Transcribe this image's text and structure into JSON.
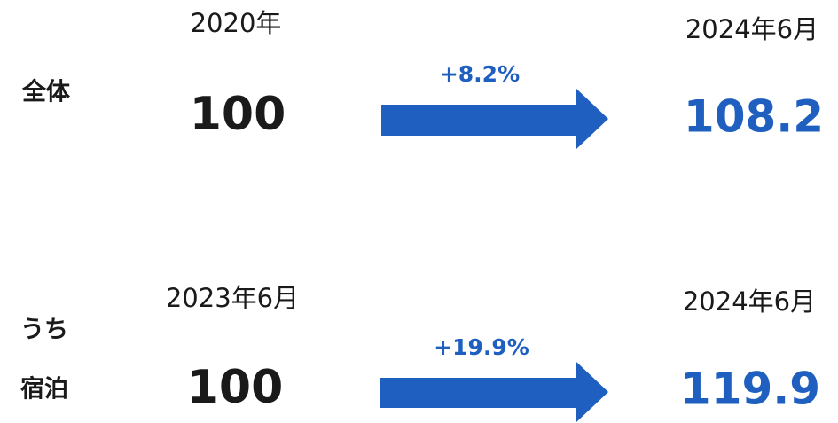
{
  "rows": [
    {
      "label": [
        "全体"
      ],
      "from_period": "2020年",
      "from_value": 100,
      "change": "+8.2%",
      "to_period": "2024年6月",
      "to_value": 108.2
    },
    {
      "label": [
        "うち",
        "宿泊"
      ],
      "from_period": "2023年6月",
      "from_value": 100,
      "change": "+19.9%",
      "to_period": "2024年6月",
      "to_value": 119.9
    }
  ]
}
